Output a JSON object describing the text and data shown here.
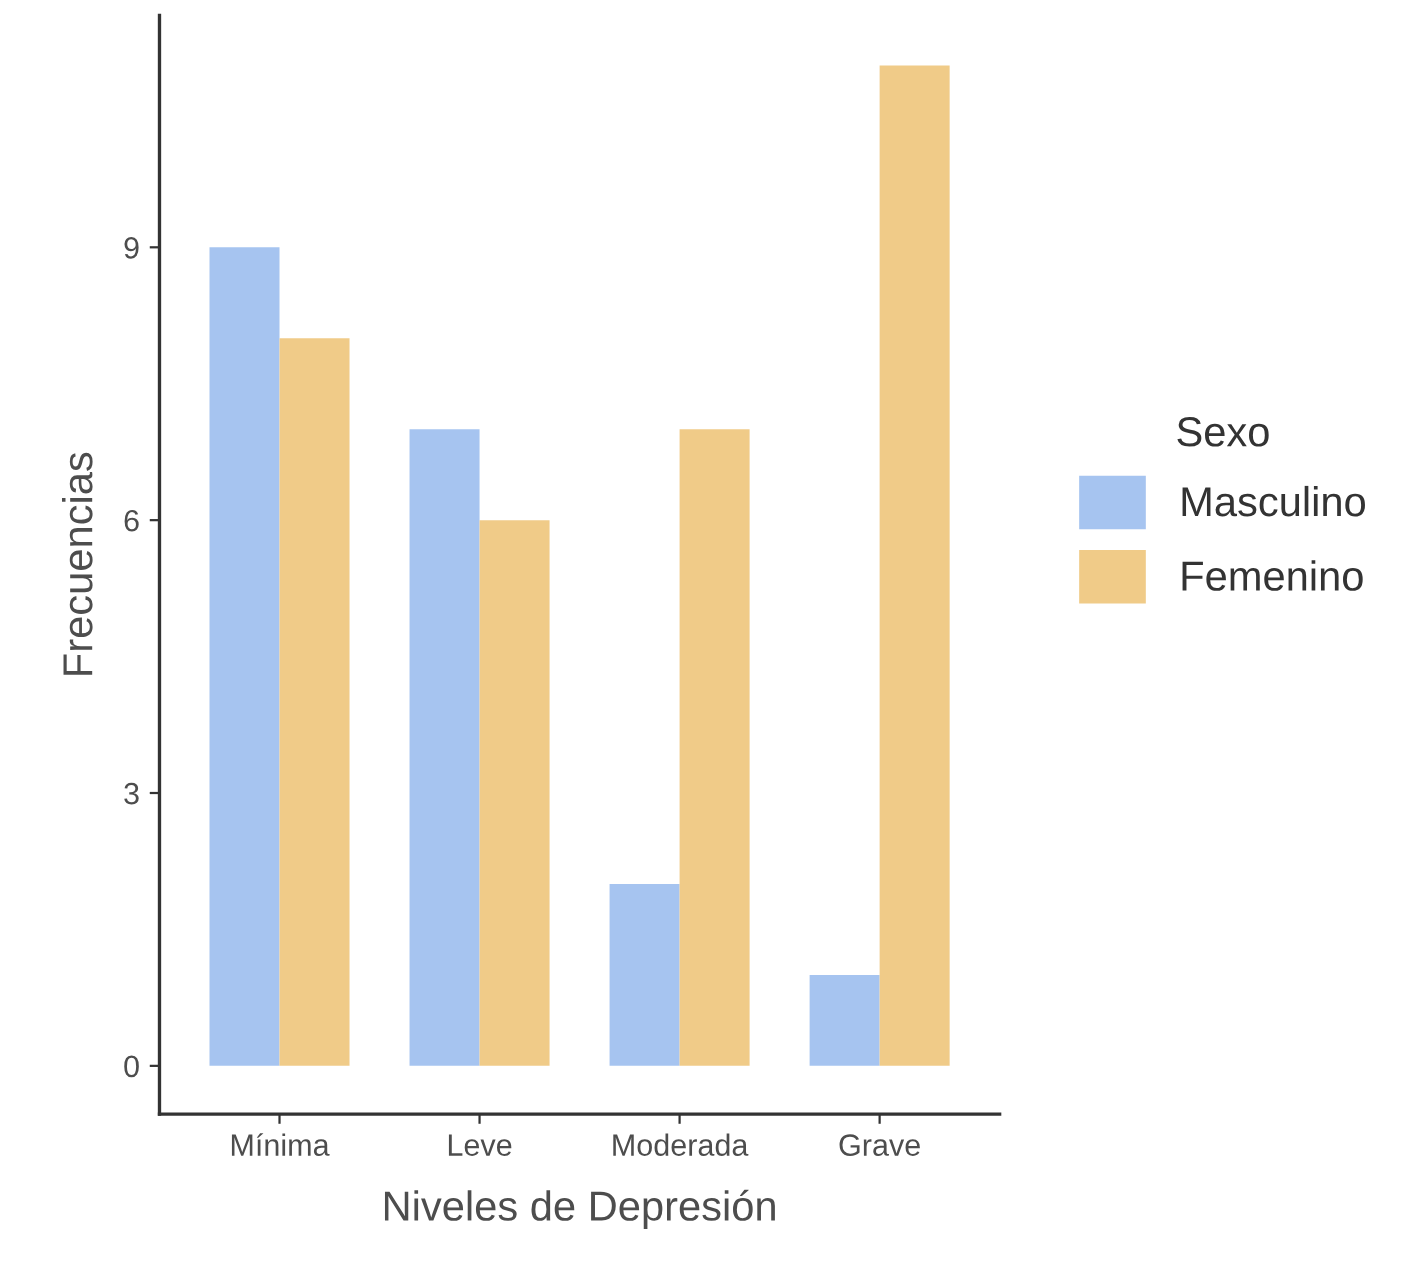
{
  "chart_data": {
    "type": "bar",
    "xlabel": "Niveles de Depresión",
    "ylabel": "Frecuencias",
    "legend_title": "Sexo",
    "categories": [
      "Mínima",
      "Leve",
      "Moderada",
      "Grave"
    ],
    "series": [
      {
        "name": "Masculino",
        "color": "#a6c4f0",
        "values": [
          9,
          7,
          2,
          1
        ]
      },
      {
        "name": "Femenino",
        "color": "#f0cb88",
        "values": [
          8,
          6,
          7,
          11
        ]
      }
    ],
    "ylim": [
      -0.53,
      11.55
    ],
    "yticks": [
      0,
      3,
      6,
      9
    ],
    "grid": false,
    "legend": "right"
  }
}
